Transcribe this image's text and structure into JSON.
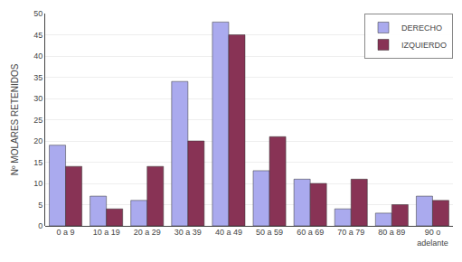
{
  "chart_data": {
    "type": "bar",
    "categories": [
      "0 a 9",
      "10 a 19",
      "20 a 29",
      "30 a 39",
      "40 a 49",
      "50 a 59",
      "60 a 69",
      "70 a 79",
      "80 a 89",
      "90 o\nadelante"
    ],
    "series": [
      {
        "name": "DERECHO",
        "color": "#aaaaee",
        "values": [
          19,
          7,
          6,
          34,
          48,
          13,
          11,
          4,
          3,
          7
        ]
      },
      {
        "name": "IZQUIERDO",
        "color": "#883355",
        "values": [
          14,
          4,
          14,
          20,
          45,
          21,
          10,
          11,
          5,
          6
        ]
      }
    ],
    "ylabel": "Nº MOLARES RETENIDOS",
    "ylim": [
      0,
      50
    ],
    "yticks": [
      0,
      5,
      10,
      15,
      20,
      25,
      30,
      35,
      40,
      45,
      50
    ],
    "grid": true,
    "legend": "upper right"
  }
}
